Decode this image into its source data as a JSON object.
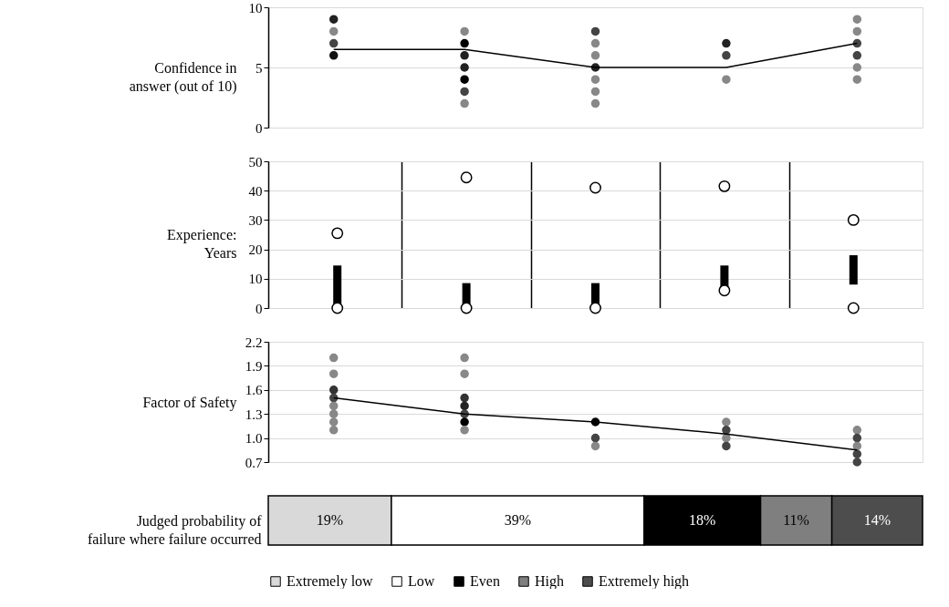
{
  "chart_data": [
    {
      "type": "scatter",
      "ylabel": "Confidence in\nanswer (out of 10)",
      "categories": [
        null,
        null,
        null,
        null,
        null
      ],
      "ylim": [
        0,
        10
      ],
      "yticks": [
        0,
        5,
        10
      ],
      "grid": "y",
      "tick_labels": "y",
      "series": [
        {
          "type": "scatter",
          "marker": "circle",
          "values": [
            9,
            8,
            8,
            7,
            9
          ],
          "colors": [
            "#222222",
            "#888888",
            "#444444",
            "#222222",
            "#888888"
          ]
        },
        {
          "type": "scatter",
          "marker": "circle",
          "values": [
            8,
            7,
            7,
            6,
            8
          ],
          "colors": [
            "#888888",
            "#000000",
            "#888888",
            "#444444",
            "#888888"
          ]
        },
        {
          "type": "scatter",
          "marker": "circle",
          "values": [
            7,
            6,
            6,
            4,
            7
          ],
          "colors": [
            "#444444",
            "#222222",
            "#888888",
            "#888888",
            "#444444"
          ]
        },
        {
          "type": "scatter",
          "marker": "circle",
          "values": [
            6,
            5,
            5,
            null,
            6
          ],
          "colors": [
            "#111111",
            "#222222",
            "#222222",
            null,
            "#444444"
          ]
        },
        {
          "type": "scatter",
          "marker": "circle",
          "values": [
            null,
            4,
            4,
            null,
            5
          ],
          "colors": [
            null,
            "#000000",
            "#888888",
            null,
            "#888888"
          ]
        },
        {
          "type": "scatter",
          "marker": "circle",
          "values": [
            null,
            3,
            3,
            null,
            4
          ],
          "colors": [
            null,
            "#444444",
            "#888888",
            null,
            "#888888"
          ]
        },
        {
          "type": "scatter",
          "marker": "circle",
          "values": [
            null,
            2,
            2,
            null,
            null
          ],
          "colors": [
            null,
            "#888888",
            "#888888",
            null,
            null
          ]
        },
        {
          "type": "line",
          "marker": "none",
          "color": "#000000",
          "values": [
            6.5,
            6.5,
            5,
            5,
            7
          ]
        }
      ]
    },
    {
      "type": "bar",
      "ylabel": "Experience:\nYears",
      "categories": [
        null,
        null,
        null,
        null,
        null
      ],
      "ylim": [
        0,
        50
      ],
      "yticks": [
        0,
        10,
        20,
        30,
        40,
        50
      ],
      "grid": true,
      "tick_labels": "y",
      "series": [
        {
          "type": "bar",
          "color": "#000000",
          "base": [
            0,
            0,
            0,
            6,
            8
          ],
          "values": [
            14.5,
            8.5,
            8.5,
            8.5,
            10
          ]
        },
        {
          "type": "scatter",
          "marker": "circle",
          "color": "#ffffff",
          "values": [
            0,
            0,
            0,
            6,
            0
          ]
        },
        {
          "type": "scatter",
          "marker": "circle",
          "color": "#ffffff",
          "values": [
            25.5,
            44.5,
            41,
            41.5,
            30
          ]
        }
      ]
    },
    {
      "type": "scatter",
      "ylabel": "Factor of Safety",
      "categories": [
        null,
        null,
        null,
        null,
        null
      ],
      "ylim": [
        0.7,
        2.2
      ],
      "yticks": [
        0.7,
        {
          "value": 1,
          "label": "1.0"
        },
        1.3,
        1.6,
        1.9,
        2.2
      ],
      "grid": "y",
      "tick_labels": "y",
      "series": [
        {
          "type": "scatter",
          "marker": "circle",
          "values": [
            2.0,
            2.0,
            1.2,
            1.2,
            1.1
          ],
          "colors": [
            "#888888",
            "#888888",
            "#000000",
            "#888888",
            "#888888"
          ]
        },
        {
          "type": "scatter",
          "marker": "circle",
          "values": [
            1.8,
            1.8,
            1.0,
            1.1,
            1.0
          ],
          "colors": [
            "#888888",
            "#888888",
            "#444444",
            "#444444",
            "#444444"
          ]
        },
        {
          "type": "scatter",
          "marker": "circle",
          "values": [
            1.6,
            1.5,
            0.9,
            1.0,
            0.9
          ],
          "colors": [
            "#333333",
            "#333333",
            "#888888",
            "#888888",
            "#888888"
          ]
        },
        {
          "type": "scatter",
          "marker": "circle",
          "values": [
            1.5,
            1.4,
            null,
            0.9,
            0.8
          ],
          "colors": [
            "#444444",
            "#222222",
            null,
            "#444444",
            "#444444"
          ]
        },
        {
          "type": "scatter",
          "marker": "circle",
          "values": [
            1.4,
            1.3,
            null,
            null,
            0.7
          ],
          "colors": [
            "#888888",
            "#444444",
            null,
            null,
            "#444444"
          ]
        },
        {
          "type": "scatter",
          "marker": "circle",
          "values": [
            1.3,
            1.2,
            null,
            null,
            null
          ],
          "colors": [
            "#888888",
            "#000000",
            null,
            null,
            null
          ]
        },
        {
          "type": "scatter",
          "marker": "circle",
          "values": [
            1.2,
            1.1,
            null,
            null,
            null
          ],
          "colors": [
            "#888888",
            "#888888",
            null,
            null,
            null
          ]
        },
        {
          "type": "scatter",
          "marker": "circle",
          "values": [
            1.1,
            null,
            null,
            null,
            null
          ],
          "colors": [
            "#888888",
            null,
            null,
            null,
            null
          ]
        },
        {
          "type": "line",
          "marker": "none",
          "color": "#000000",
          "values": [
            1.5,
            1.3,
            1.2,
            1.05,
            0.85
          ]
        }
      ]
    },
    {
      "type": "bar",
      "orientation": "horizontal",
      "stacked": true,
      "ylabel": "Judged probability of\nfailure where failure occurred",
      "categories": [
        null
      ],
      "tick_labels": false,
      "legend": "bottom",
      "series": [
        {
          "name": "Extremely low",
          "color": "#d9d9d9",
          "values": [
            19
          ],
          "value_labels": [
            "19%"
          ]
        },
        {
          "name": "Low",
          "color": "#ffffff",
          "values": [
            39
          ],
          "value_labels": [
            "39%"
          ]
        },
        {
          "name": "Even",
          "color": "#000000",
          "values": [
            18
          ],
          "value_labels": [
            "18%"
          ]
        },
        {
          "name": "High",
          "color": "#7f7f7f",
          "values": [
            11
          ],
          "value_labels": [
            "11%"
          ]
        },
        {
          "name": "Extremely high",
          "color": "#4d4d4d",
          "values": [
            14
          ],
          "value_labels": [
            "14%"
          ]
        }
      ]
    }
  ]
}
